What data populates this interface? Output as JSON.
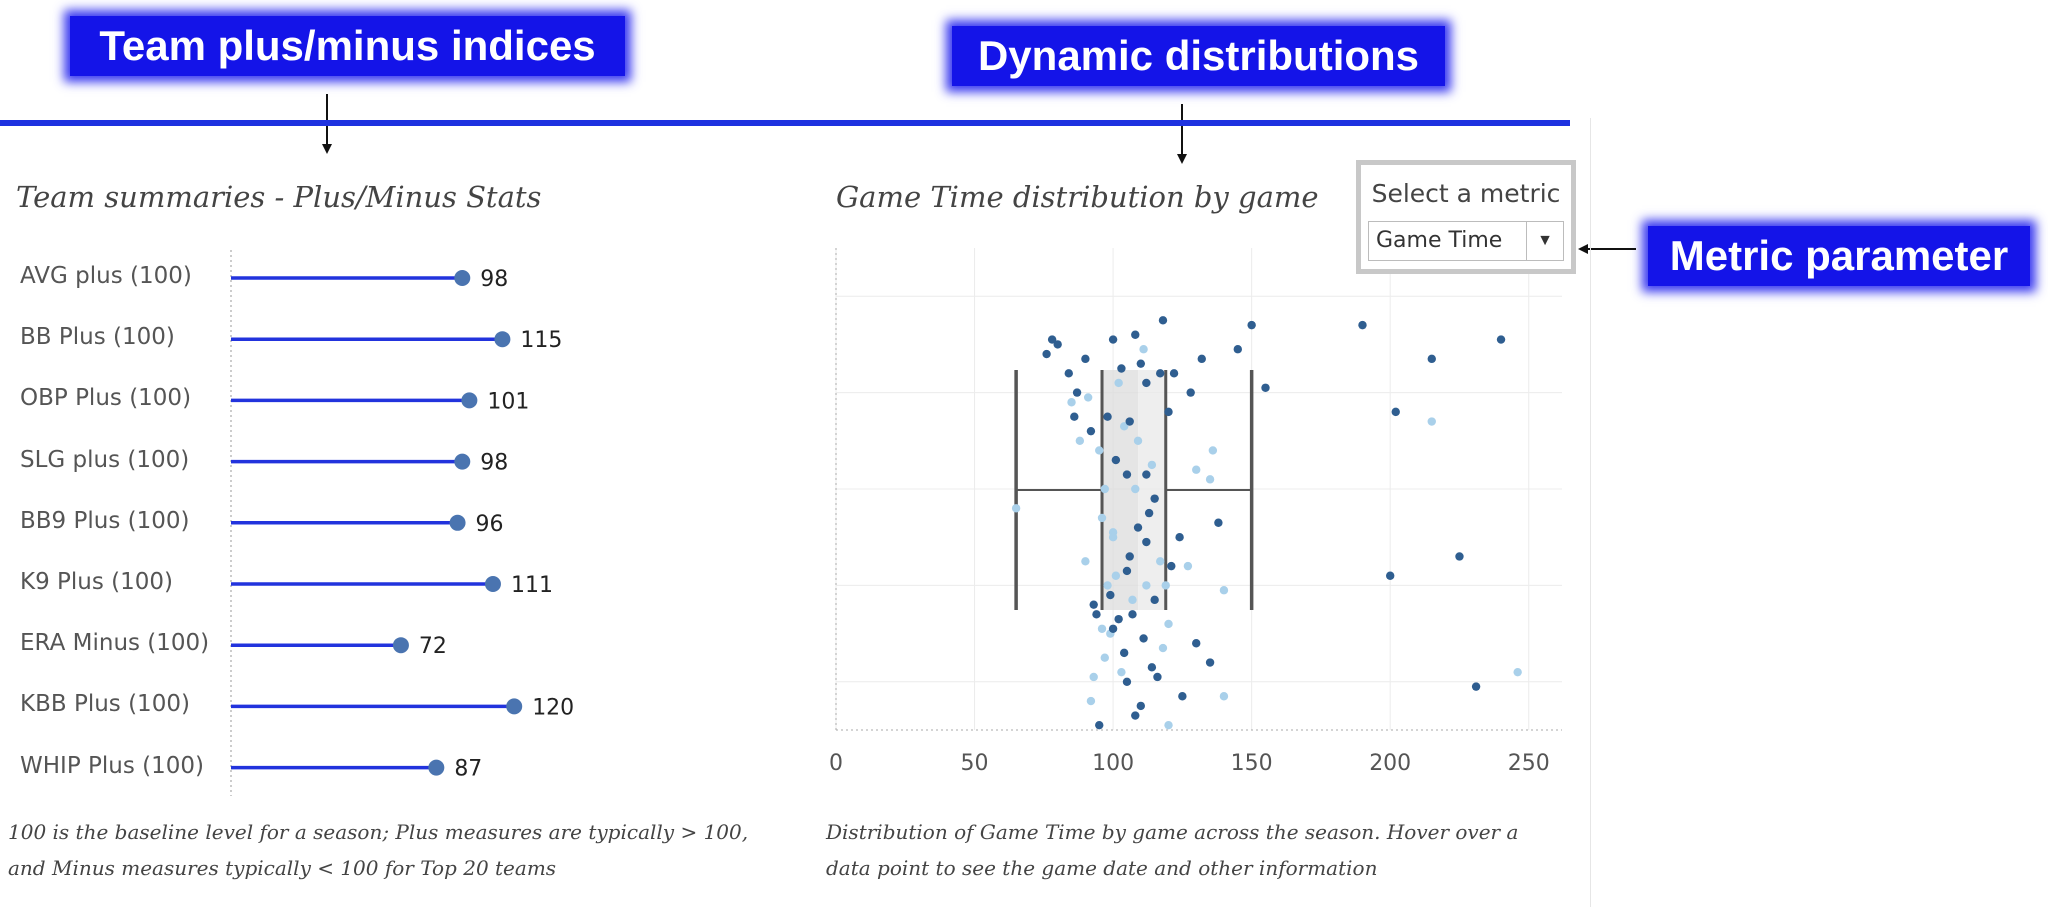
{
  "callouts": {
    "team": "Team plus/minus indices",
    "dynamic": "Dynamic distributions",
    "metric": "Metric parameter"
  },
  "left_panel": {
    "title": "Team summaries - Plus/Minus Stats",
    "note": "100 is the baseline level for a season; Plus measures are typically > 100, and Minus measures typically < 100 for Top 20 teams"
  },
  "right_panel": {
    "title": "Game Time distribution by game",
    "note": "Distribution of Game Time by game across the season. Hover over a data point to see the game date and other information"
  },
  "metric_selector": {
    "title": "Select a metric",
    "value": "Game Time",
    "arrow_icon": "chevron-down-icon"
  },
  "colors": {
    "callout_bg": "#1414e8",
    "lollipop_line": "#2233dd",
    "lollipop_dot": "#4a74b0",
    "dot_dark": "#2f5e90",
    "dot_light": "#a9d0ea",
    "box_fill": "#dcdcdc"
  },
  "chart_data": [
    {
      "type": "lollipop",
      "categories": [
        "AVG plus (100)",
        "BB Plus (100)",
        "OBP Plus (100)",
        "SLG plus (100)",
        "BB9 Plus (100)",
        "K9 Plus (100)",
        "ERA Minus (100)",
        "KBB Plus (100)",
        "WHIP Plus (100)"
      ],
      "values": [
        98,
        115,
        101,
        98,
        96,
        111,
        72,
        120,
        87
      ]
    },
    {
      "type": "scatter",
      "subtype": "box-and-jitter",
      "xlim": [
        0,
        262
      ],
      "xticks": [
        0,
        50,
        100,
        150,
        200,
        250
      ],
      "grid": true,
      "box": {
        "whisker_low": 65,
        "q1": 96,
        "median": 109,
        "q3": 119,
        "whisker_high": 150
      },
      "points": {
        "x": [
          100,
          103,
          110,
          112,
          98,
          104,
          106,
          95,
          101,
          105,
          108,
          115,
          113,
          100,
          109,
          117,
          121,
          124,
          119,
          99,
          107,
          94,
          102,
          96,
          118,
          111,
          97,
          114,
          116,
          93,
          105,
          103,
          125,
          92,
          110,
          108,
          98,
          101,
          120,
          95,
          107,
          112,
          99,
          104,
          92,
          114,
          96,
          106,
          120,
          109,
          91,
          102,
          111,
          117,
          97,
          112,
          93,
          100,
          105,
          115,
          120,
          130,
          135,
          140,
          118,
          128,
          132,
          90,
          87,
          84,
          80,
          76,
          78,
          86,
          88,
          130,
          138,
          127,
          135,
          85,
          90,
          136,
          140,
          122,
          145,
          150,
          155,
          190,
          215,
          240,
          202,
          225,
          200,
          231,
          215,
          246,
          65,
          112,
          108,
          100
        ],
        "y": [
          19,
          25,
          24,
          28,
          35,
          37,
          36,
          42,
          44,
          47,
          50,
          52,
          55,
          59,
          58,
          65,
          66,
          60,
          70,
          72,
          73,
          76,
          77,
          79,
          83,
          81,
          85,
          87,
          89,
          89,
          90,
          88,
          93,
          94,
          95,
          97,
          70,
          68,
          99,
          99,
          76,
          70,
          80,
          84,
          38,
          45,
          56,
          64,
          34,
          40,
          31,
          28,
          21,
          26,
          50,
          61,
          74,
          79,
          67,
          73,
          78,
          82,
          86,
          93,
          15,
          30,
          23,
          23,
          30,
          26,
          20,
          22,
          19,
          35,
          40,
          46,
          57,
          66,
          48,
          32,
          65,
          42,
          71,
          26,
          21,
          16,
          29,
          16,
          23,
          19,
          34,
          64,
          68,
          91,
          36,
          88,
          54,
          47,
          18,
          60
        ],
        "shade": [
          "d",
          "d",
          "d",
          "d",
          "d",
          "l",
          "d",
          "l",
          "d",
          "d",
          "l",
          "d",
          "d",
          "l",
          "d",
          "l",
          "d",
          "d",
          "l",
          "d",
          "l",
          "d",
          "d",
          "l",
          "l",
          "d",
          "l",
          "d",
          "d",
          "l",
          "d",
          "l",
          "d",
          "l",
          "d",
          "d",
          "l",
          "l",
          "l",
          "d",
          "d",
          "l",
          "l",
          "d",
          "d",
          "l",
          "l",
          "d",
          "d",
          "l",
          "l",
          "l",
          "l",
          "d",
          "l",
          "d",
          "d",
          "d",
          "d",
          "d",
          "l",
          "d",
          "d",
          "l",
          "d",
          "d",
          "d",
          "d",
          "d",
          "d",
          "d",
          "d",
          "d",
          "d",
          "l",
          "l",
          "d",
          "l",
          "l",
          "l",
          "l",
          "l",
          "l",
          "d",
          "d",
          "d",
          "d",
          "d",
          "d",
          "d",
          "d",
          "d",
          "d",
          "d",
          "l",
          "l",
          "l",
          "d",
          "d",
          "l"
        ]
      }
    }
  ]
}
